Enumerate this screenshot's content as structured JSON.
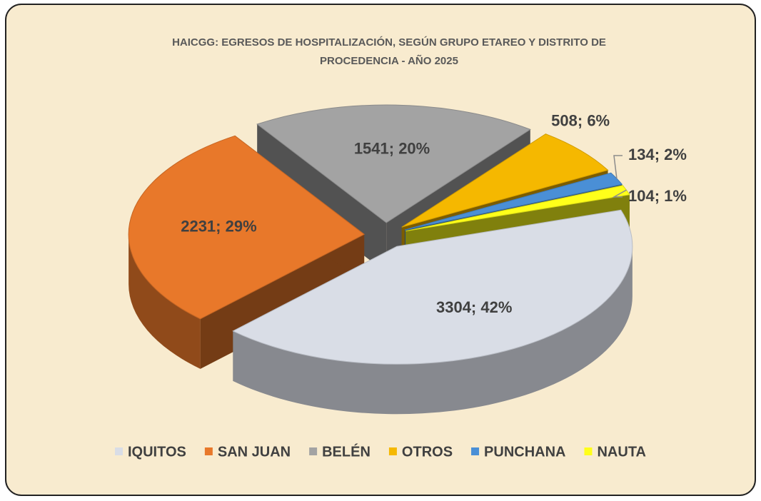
{
  "chart_data": {
    "type": "pie3d",
    "title": [
      "HAICGG: EGRESOS DE HOSPITALIZACIÓN, SEGÚN GRUPO ETAREO Y DISTRITO DE",
      "PROCEDENCIA - AÑO 2025"
    ],
    "categories": [
      "IQUITOS",
      "SAN JUAN",
      "BELÉN",
      "OTROS",
      "PUNCHANA",
      "NAUTA"
    ],
    "values": [
      3304,
      2231,
      1541,
      508,
      134,
      104
    ],
    "value_labels": [
      "3304; 42%",
      "2231; 29%",
      "1541; 20%",
      "508; 6%",
      "134; 2%",
      "104; 1%"
    ],
    "colors": [
      "#d9dde6",
      "#e8782a",
      "#a3a3a3",
      "#f5b800",
      "#4a8fd6",
      "#ffff1a"
    ],
    "legend": "bottom"
  }
}
